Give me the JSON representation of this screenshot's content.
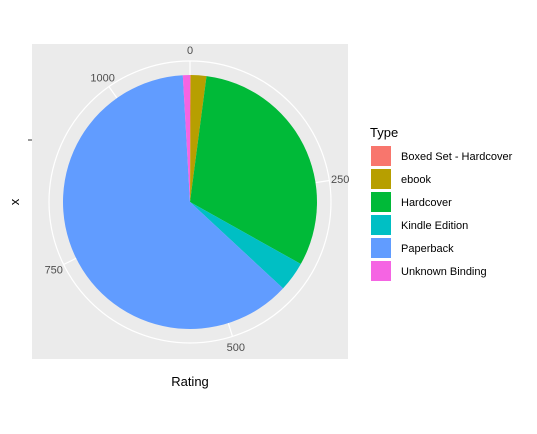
{
  "chart_data": {
    "type": "pie",
    "coord": "polar",
    "xlabel": "Rating",
    "ylabel": "x",
    "angular_axis": {
      "ticks": [
        0,
        250,
        500,
        750,
        1000
      ],
      "tick_labels": [
        "0",
        "250",
        "500",
        "750",
        "1000"
      ],
      "total": 1108
    },
    "legend": {
      "title": "Type",
      "placement": "right"
    },
    "series": [
      {
        "name": "Boxed Set - Hardcover",
        "value": 1,
        "color": "#F8766D"
      },
      {
        "name": "ebook",
        "value": 22,
        "color": "#B79F00"
      },
      {
        "name": "Hardcover",
        "value": 344,
        "color": "#00BA38"
      },
      {
        "name": "Kindle Edition",
        "value": 42,
        "color": "#00BFC4"
      },
      {
        "name": "Paperback",
        "value": 689,
        "color": "#619CFF"
      },
      {
        "name": "Unknown Binding",
        "value": 10,
        "color": "#F564E3"
      }
    ],
    "panel_background": "#EBEBEB",
    "grid_color": "#FFFFFF"
  }
}
